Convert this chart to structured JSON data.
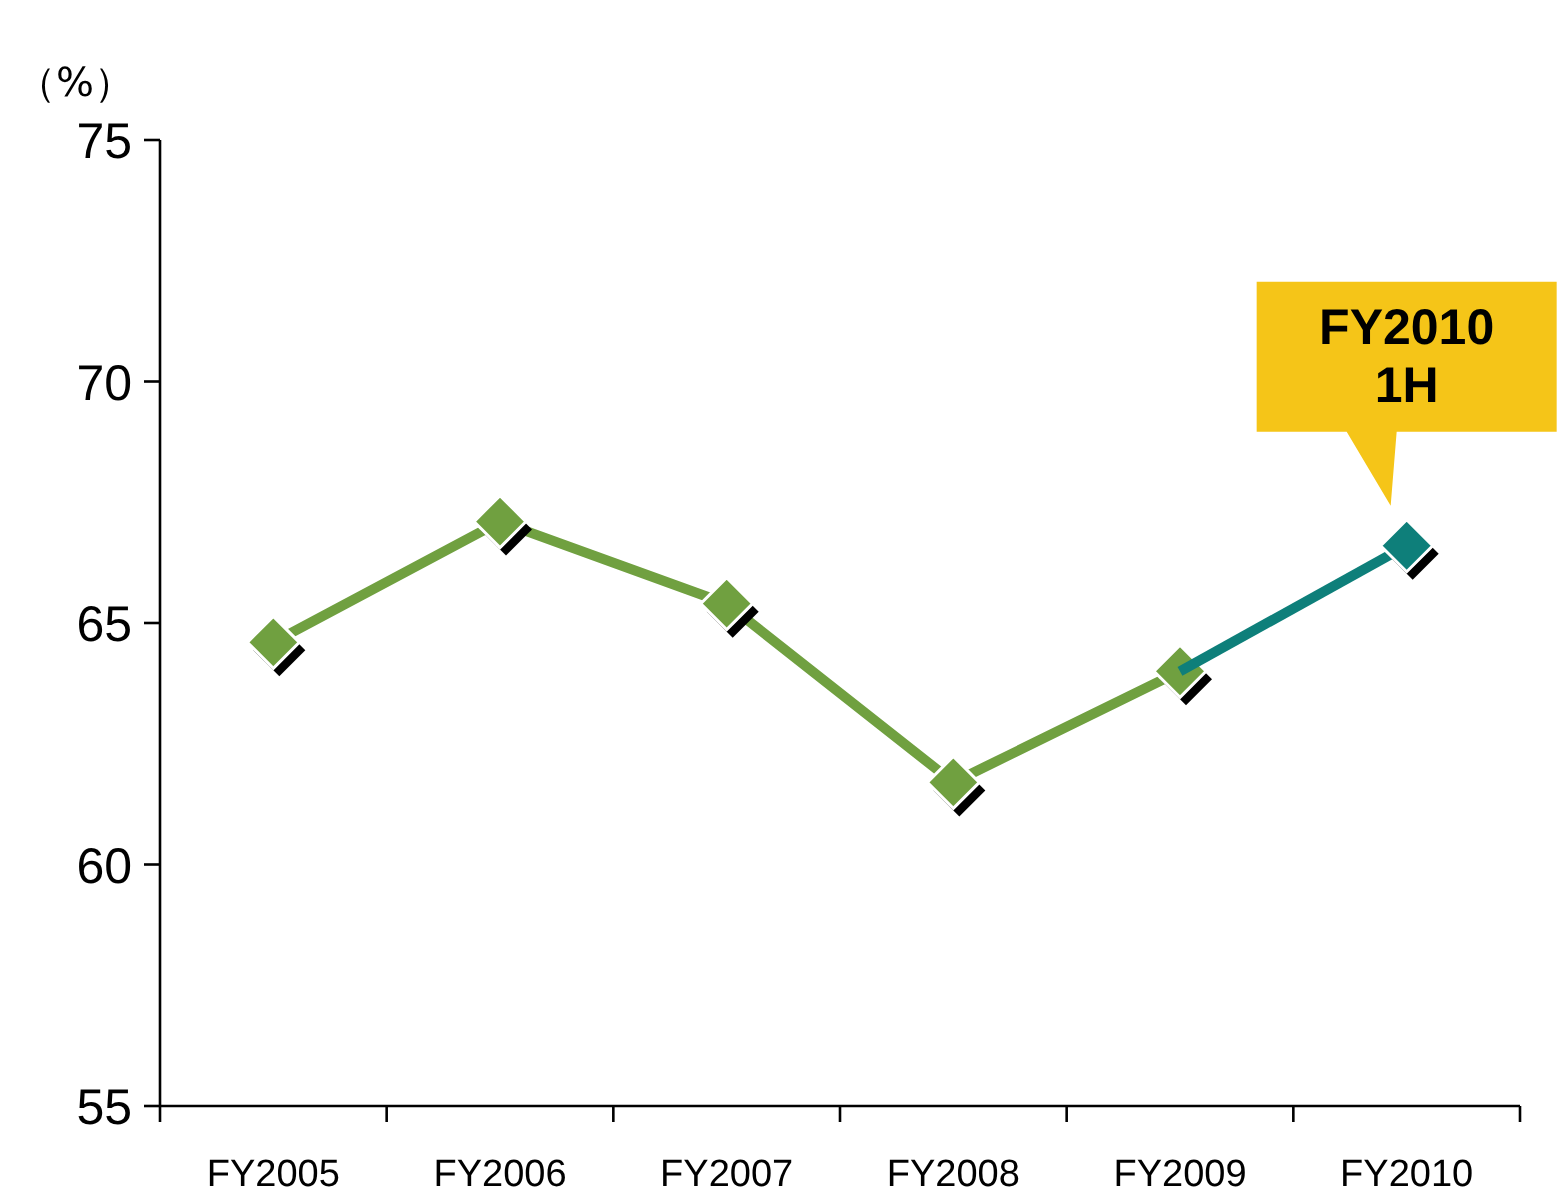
{
  "chart_data": {
    "type": "line",
    "ylabel": "（%）",
    "categories": [
      "FY2005",
      "FY2006",
      "FY2007",
      "FY2008",
      "FY2009",
      "FY2010"
    ],
    "series": [
      {
        "color": "#70a040",
        "values": [
          64.6,
          67.1,
          65.4,
          61.7,
          64.0,
          null
        ]
      },
      {
        "color": "#0e7f7a",
        "values": [
          null,
          null,
          null,
          null,
          64.0,
          66.6
        ]
      }
    ],
    "ylim": [
      55,
      75
    ],
    "yticks": [
      55,
      60,
      65,
      70,
      75
    ],
    "marker": "diamond",
    "line_style": "solid",
    "grid": false,
    "annotations": [
      {
        "text": "FY2010\n1H",
        "x": "FY2010",
        "y": 66.6
      }
    ]
  }
}
